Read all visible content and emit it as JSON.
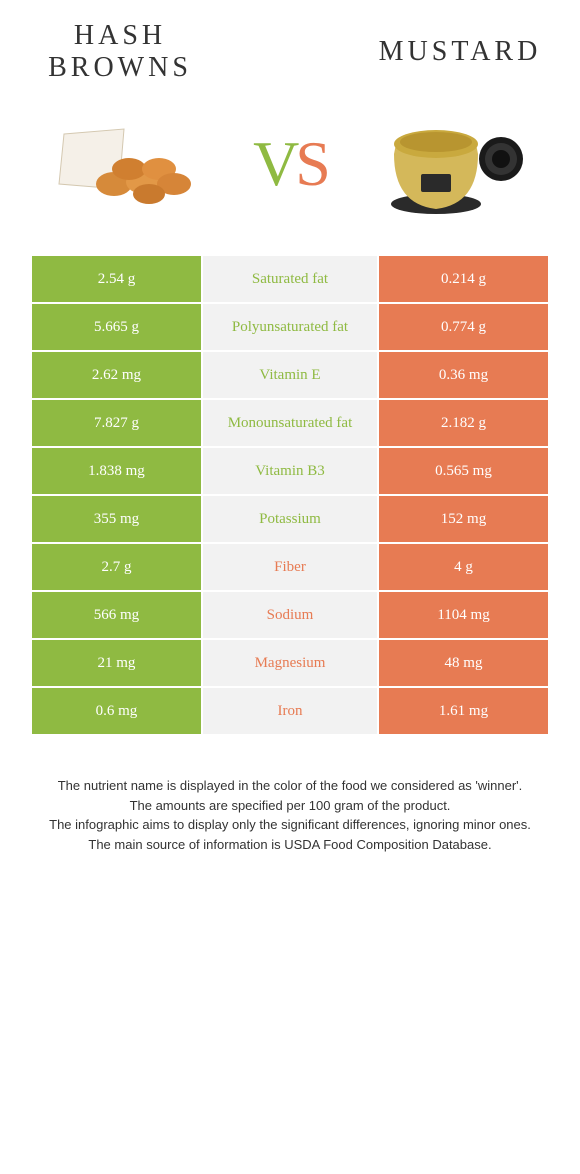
{
  "header": {
    "food1": "Hash browns",
    "food2": "Mustard",
    "vs_v": "V",
    "vs_s": "S"
  },
  "colors": {
    "green": "#8fba42",
    "orange": "#e77b53",
    "mid_bg": "#f2f2f2",
    "text": "#333333",
    "white": "#ffffff"
  },
  "rows": [
    {
      "left": "2.54 g",
      "label": "Saturated fat",
      "right": "0.214 g",
      "winner": "green"
    },
    {
      "left": "5.665 g",
      "label": "Polyunsaturated fat",
      "right": "0.774 g",
      "winner": "green"
    },
    {
      "left": "2.62 mg",
      "label": "Vitamin E",
      "right": "0.36 mg",
      "winner": "green"
    },
    {
      "left": "7.827 g",
      "label": "Monounsaturated fat",
      "right": "2.182 g",
      "winner": "green"
    },
    {
      "left": "1.838 mg",
      "label": "Vitamin B3",
      "right": "0.565 mg",
      "winner": "green"
    },
    {
      "left": "355 mg",
      "label": "Potassium",
      "right": "152 mg",
      "winner": "green"
    },
    {
      "left": "2.7 g",
      "label": "Fiber",
      "right": "4 g",
      "winner": "orange"
    },
    {
      "left": "566 mg",
      "label": "Sodium",
      "right": "1104 mg",
      "winner": "orange"
    },
    {
      "left": "21 mg",
      "label": "Magnesium",
      "right": "48 mg",
      "winner": "orange"
    },
    {
      "left": "0.6 mg",
      "label": "Iron",
      "right": "1.61 mg",
      "winner": "orange"
    }
  ],
  "footer": {
    "l1": "The nutrient name is displayed in the color of the food we considered as 'winner'.",
    "l2": "The amounts are specified per 100 gram of the product.",
    "l3": "The infographic aims to display only the significant differences, ignoring minor ones.",
    "l4": "The main source of information is USDA Food Composition Database."
  }
}
